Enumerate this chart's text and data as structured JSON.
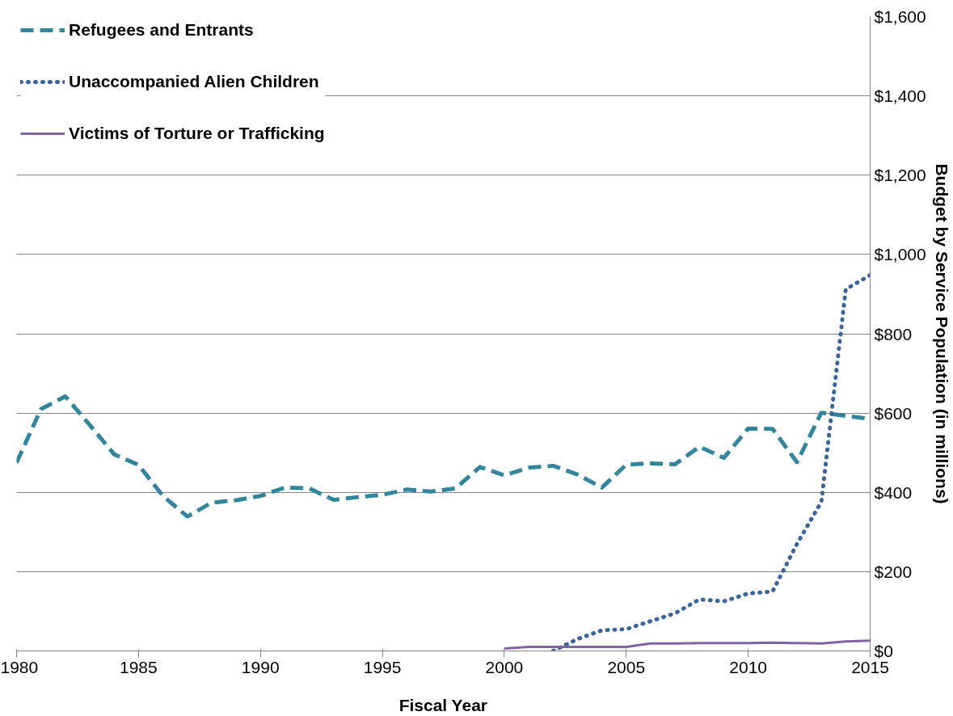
{
  "chart_data": {
    "type": "line",
    "xlabel": "Fiscal Year",
    "ylabel": "Budget by Service Population (in millions)",
    "xlim": [
      1980,
      2015
    ],
    "xticks": [
      1980,
      1985,
      1990,
      1995,
      2000,
      2005,
      2010,
      2015
    ],
    "ylim": [
      0,
      1600
    ],
    "yticks": [
      {
        "value": 0,
        "label": "$0"
      },
      {
        "value": 200,
        "label": "$200"
      },
      {
        "value": 400,
        "label": "$400"
      },
      {
        "value": 600,
        "label": "$600"
      },
      {
        "value": 800,
        "label": "$800"
      },
      {
        "value": 1000,
        "label": "$1,000"
      },
      {
        "value": 1200,
        "label": "$1,200"
      },
      {
        "value": 1400,
        "label": "$1,400"
      },
      {
        "value": 1600,
        "label": "$1,600"
      }
    ],
    "grid": "y",
    "legend": "top left",
    "marker": "none",
    "series": [
      {
        "name": "Refugees and Entrants",
        "color": "#31859c",
        "line_style": "dashed",
        "x": [
          1980,
          1981,
          1982,
          1983,
          1984,
          1985,
          1986,
          1987,
          1988,
          1989,
          1990,
          1991,
          1992,
          1993,
          1994,
          1995,
          1996,
          1997,
          1998,
          1999,
          2000,
          2001,
          2002,
          2003,
          2004,
          2005,
          2006,
          2007,
          2008,
          2009,
          2010,
          2011,
          2012,
          2013,
          2014,
          2015
        ],
        "values": [
          475,
          610,
          642,
          570,
          496,
          469,
          391,
          339,
          374,
          380,
          391,
          412,
          410,
          381,
          388,
          394,
          407,
          402,
          410,
          464,
          443,
          462,
          467,
          445,
          412,
          470,
          473,
          471,
          515,
          487,
          561,
          560,
          476,
          601,
          593,
          585
        ]
      },
      {
        "name": "Unaccompanied Alien Children",
        "color": "#3a649c",
        "line_style": "dotted",
        "x": [
          2002,
          2003,
          2004,
          2005,
          2006,
          2007,
          2008,
          2009,
          2010,
          2011,
          2012,
          2013,
          2014,
          2015
        ],
        "values": [
          0,
          30,
          52,
          55,
          75,
          95,
          130,
          125,
          145,
          150,
          270,
          376,
          912,
          948
        ]
      },
      {
        "name": "Victims of Torture or Trafficking",
        "color": "#8064a2",
        "line_style": "solid",
        "x": [
          2000,
          2001,
          2002,
          2003,
          2004,
          2005,
          2006,
          2007,
          2008,
          2009,
          2010,
          2011,
          2012,
          2013,
          2014,
          2015
        ],
        "values": [
          6,
          10,
          10,
          10,
          10,
          10,
          19,
          19,
          20,
          20,
          20,
          21,
          20,
          19,
          24,
          26
        ]
      }
    ]
  }
}
